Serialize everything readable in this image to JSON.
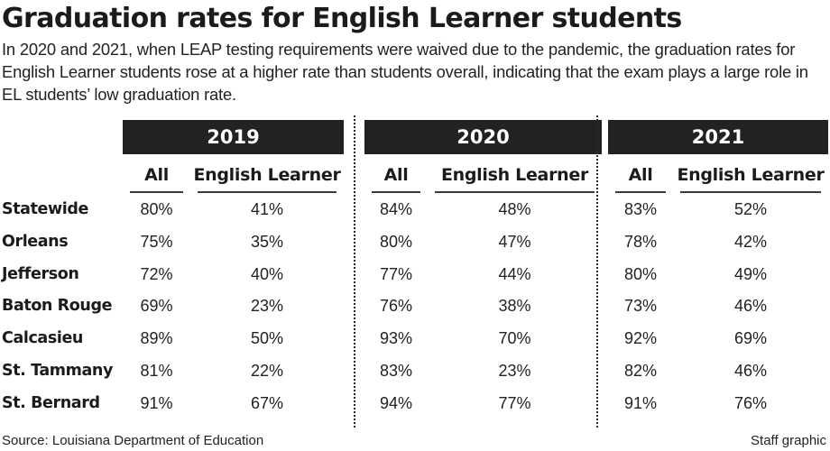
{
  "chart_data": {
    "type": "table",
    "title": "Graduation rates for English Learner students",
    "subtitle": "In 2020 and 2021, when LEAP testing requirements were waived due to the pandemic, the graduation rates for English Learner students rose at a higher rate than students overall, indicating that the exam plays a large role in EL students’ low graduation rate.",
    "years": [
      "2019",
      "2020",
      "2021"
    ],
    "columns": [
      "All",
      "English Learner"
    ],
    "rows": [
      {
        "label": "Statewide",
        "cells": [
          "80%",
          "41%",
          "84%",
          "48%",
          "83%",
          "52%"
        ]
      },
      {
        "label": "Orleans",
        "cells": [
          "75%",
          "35%",
          "80%",
          "47%",
          "78%",
          "42%"
        ]
      },
      {
        "label": "Jefferson",
        "cells": [
          "72%",
          "40%",
          "77%",
          "44%",
          "80%",
          "49%"
        ]
      },
      {
        "label": "Baton Rouge",
        "cells": [
          "69%",
          "23%",
          "76%",
          "38%",
          "73%",
          "46%"
        ]
      },
      {
        "label": "Calcasieu",
        "cells": [
          "89%",
          "50%",
          "93%",
          "70%",
          "92%",
          "69%"
        ]
      },
      {
        "label": "St. Tammany",
        "cells": [
          "81%",
          "22%",
          "83%",
          "23%",
          "82%",
          "46%"
        ]
      },
      {
        "label": "St. Bernard",
        "cells": [
          "91%",
          "67%",
          "94%",
          "77%",
          "91%",
          "76%"
        ]
      }
    ],
    "source": "Source: Louisiana Department of Education",
    "credit": "Staff graphic"
  }
}
